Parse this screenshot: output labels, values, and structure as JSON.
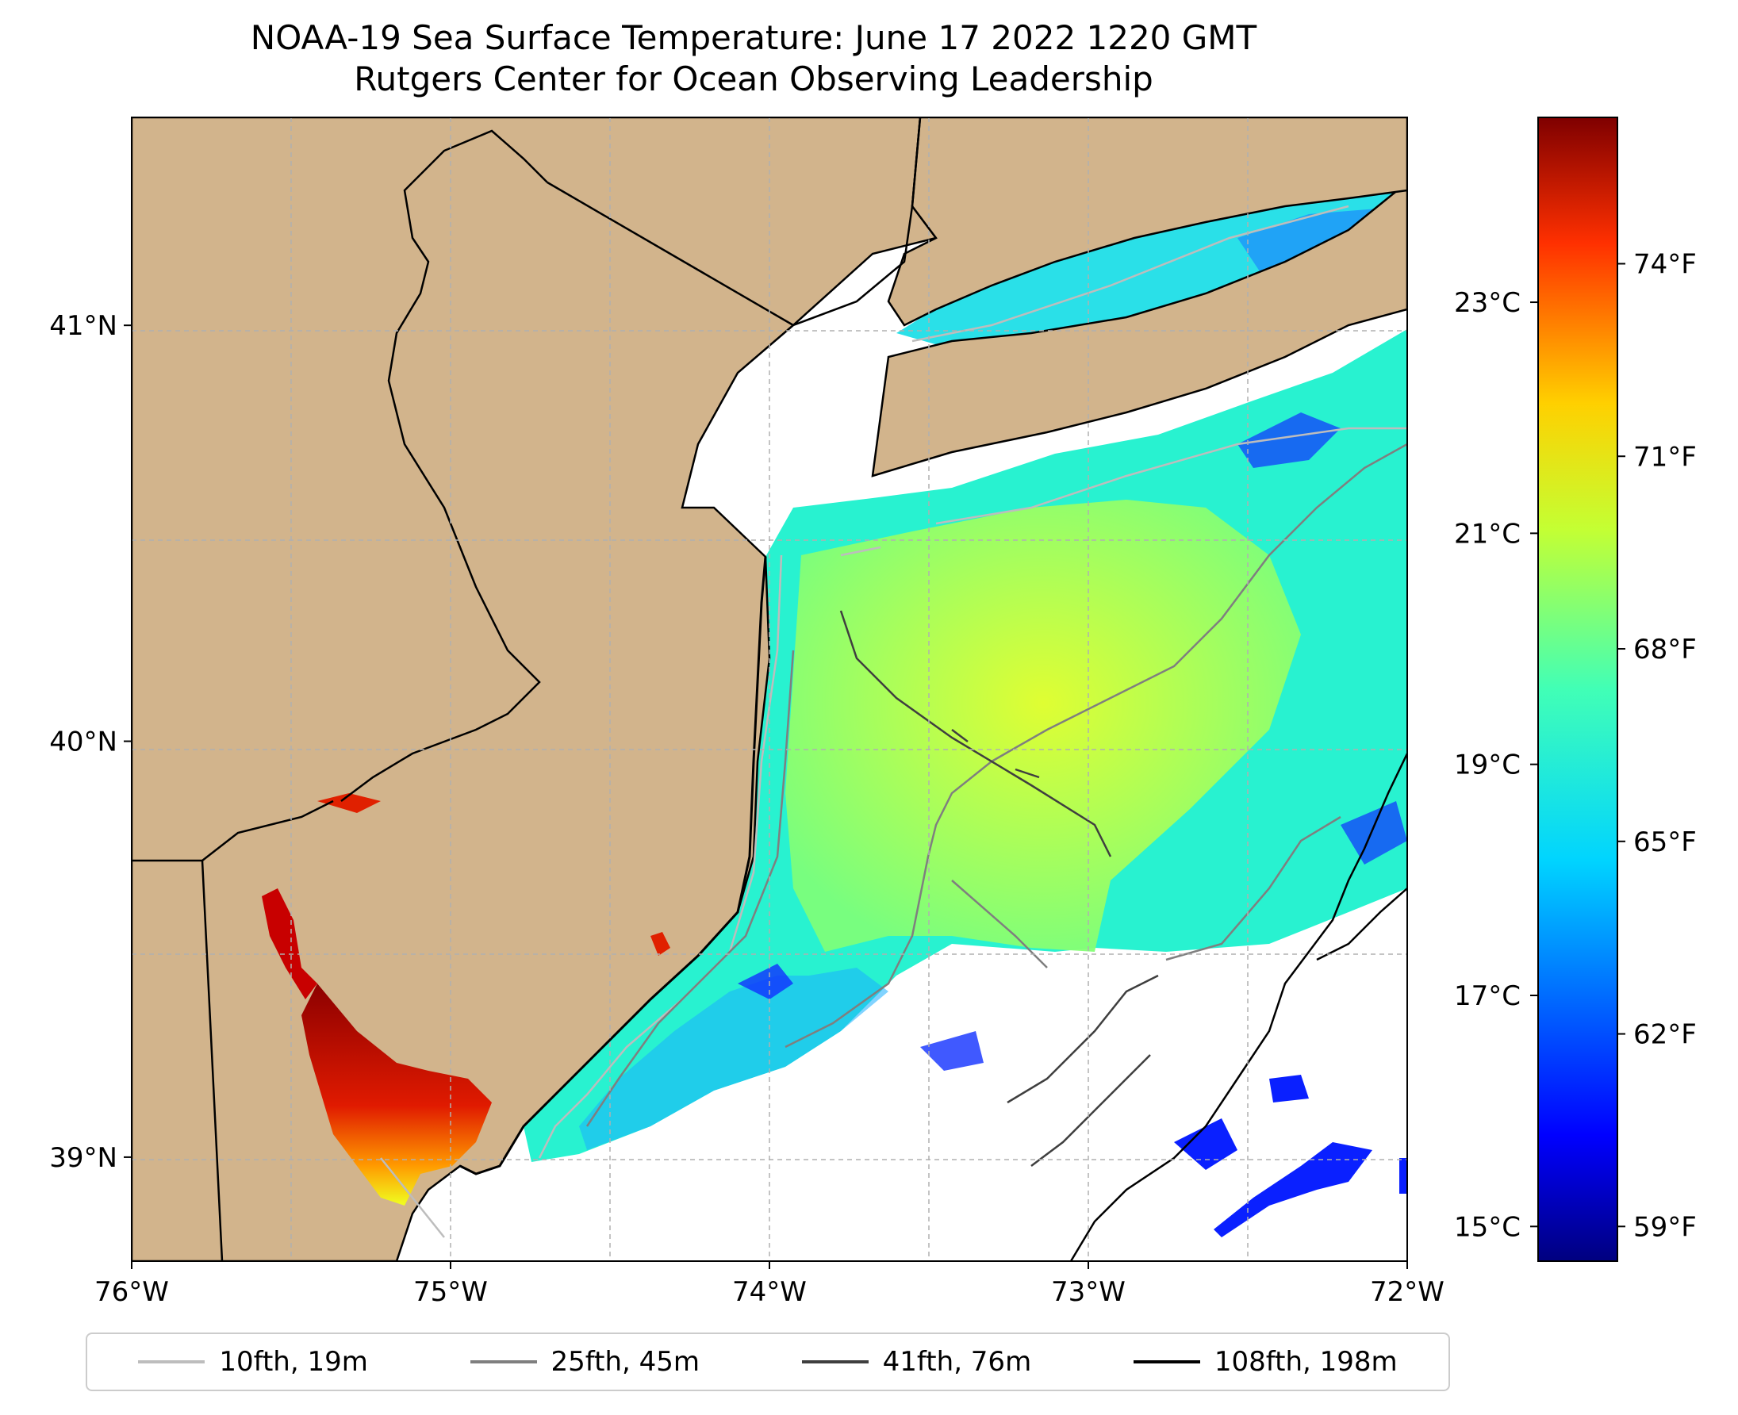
{
  "title": {
    "line1": "NOAA-19 Sea Surface Temperature: June 17 2022 1220 GMT",
    "line2": "Rutgers Center for Ocean Observing Leadership"
  },
  "axes": {
    "x_ticks": [
      "76°W",
      "75°W",
      "74°W",
      "73°W",
      "72°W"
    ],
    "x_values": [
      -76,
      -75,
      -74,
      -73,
      -72
    ],
    "y_ticks": [
      "41°N",
      "40°N",
      "39°N"
    ],
    "y_values": [
      41,
      40,
      39
    ],
    "lon_range": [
      -76,
      -72
    ],
    "lat_range": [
      38.75,
      41.5
    ]
  },
  "colorbar": {
    "celsius_labels": [
      "23°C",
      "21°C",
      "19°C",
      "17°C",
      "15°C"
    ],
    "celsius_values": [
      23,
      21,
      19,
      17,
      15
    ],
    "fahrenheit_labels": [
      "74°F",
      "71°F",
      "68°F",
      "65°F",
      "62°F",
      "59°F"
    ],
    "fahrenheit_values": [
      74,
      71,
      68,
      65,
      62,
      59
    ],
    "celsius_range": [
      14.7,
      24.6
    ],
    "colormap": "jet"
  },
  "legend": [
    {
      "label": "10fth, 19m",
      "color": "#bdbdbd"
    },
    {
      "label": "25fth, 45m",
      "color": "#7f7f7f"
    },
    {
      "label": "41fth, 76m",
      "color": "#3f3f3f"
    },
    {
      "label": "108fth, 198m",
      "color": "#000000"
    }
  ],
  "colors": {
    "land": "#d2b48c",
    "nodata": "#ffffff",
    "grid": "#b0b0b0"
  }
}
